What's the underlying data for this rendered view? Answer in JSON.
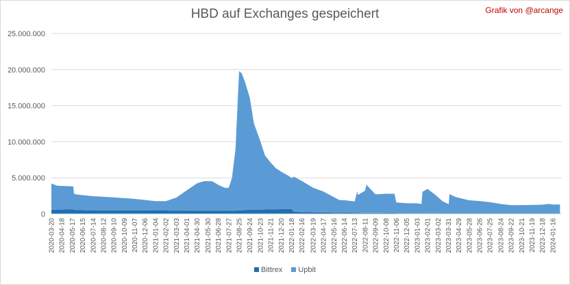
{
  "credit": "Grafik von @arcange",
  "colors": {
    "bittrex": "#1f6fb2",
    "upbit": "#5b9bd5",
    "grid": "#d9d9d9",
    "text": "#595959",
    "credit": "#c00000"
  },
  "chart_data": {
    "type": "area",
    "stacked": true,
    "title": "HBD auf Exchanges gespeichert",
    "xlabel": "",
    "ylabel": "",
    "ylim": [
      0,
      25000000
    ],
    "ytick_labels": [
      "0",
      "5.000.000",
      "10.000.000",
      "15.000.000",
      "20.000.000",
      "25.000.000"
    ],
    "ytick_values": [
      0,
      5000000,
      10000000,
      15000000,
      20000000,
      25000000
    ],
    "x_tick_labels": [
      "2020-03-20",
      "2020-04-18",
      "2020-05-17",
      "2020-06-15",
      "2020-07-14",
      "2020-08-12",
      "2020-09-10",
      "2020-10-09",
      "2020-11-07",
      "2020-12-06",
      "2021-01-04",
      "2021-02-02",
      "2021-03-03",
      "2021-04-01",
      "2021-04-30",
      "2021-05-30",
      "2021-06-28",
      "2021-07-27",
      "2021-08-25",
      "2021-09-24",
      "2021-10-23",
      "2021-11-21",
      "2021-12-20",
      "2022-01-18",
      "2022-02-16",
      "2022-03-19",
      "2022-04-17",
      "2022-05-16",
      "2022-06-14",
      "2022-07-13",
      "2022-08-11",
      "2022-09-09",
      "2022-10-08",
      "2022-11-06",
      "2022-12-05",
      "2023-01-03",
      "2023-02-01",
      "2023-03-02",
      "2023-03-31",
      "2023-04-29",
      "2023-05-28",
      "2023-06-26",
      "2023-07-25",
      "2023-08-24",
      "2023-09-22",
      "2023-10-21",
      "2023-11-19",
      "2023-12-18",
      "2024-01-16"
    ],
    "grid": true,
    "legend_position": "bottom",
    "series": [
      {
        "name": "Bittrex",
        "x": [
          "2020-03-20",
          "2020-04-01",
          "2020-05-17",
          "2020-06-01",
          "2020-08-12",
          "2020-10-09",
          "2020-12-06",
          "2021-02-02",
          "2021-04-01",
          "2021-05-30",
          "2021-07-27",
          "2021-08-25",
          "2021-09-10",
          "2021-10-23",
          "2021-11-21",
          "2021-12-05",
          "2022-01-18",
          "2022-01-25",
          "2022-02-16",
          "2022-04-17",
          "2022-06-14",
          "2022-08-11",
          "2022-10-08",
          "2022-12-05",
          "2023-02-01",
          "2023-03-31",
          "2023-05-28",
          "2023-07-25",
          "2023-09-22",
          "2023-11-19",
          "2024-01-16",
          "2024-02-05"
        ],
        "values": [
          550000,
          600000,
          620000,
          520000,
          500000,
          490000,
          480000,
          470000,
          460000,
          440000,
          430000,
          480000,
          550000,
          600000,
          620000,
          650000,
          680000,
          300000,
          260000,
          200000,
          150000,
          120000,
          100000,
          80000,
          60000,
          50000,
          40000,
          30000,
          20000,
          15000,
          10000,
          10000
        ]
      },
      {
        "name": "Upbit",
        "x": [
          "2020-03-20",
          "2020-04-05",
          "2020-05-20",
          "2020-05-22",
          "2020-07-14",
          "2020-09-10",
          "2020-11-07",
          "2021-01-04",
          "2021-02-02",
          "2021-03-03",
          "2021-04-01",
          "2021-04-30",
          "2021-05-20",
          "2021-06-10",
          "2021-06-28",
          "2021-07-15",
          "2021-07-27",
          "2021-08-05",
          "2021-08-15",
          "2021-08-20",
          "2021-08-25",
          "2021-09-01",
          "2021-09-10",
          "2021-09-24",
          "2021-10-05",
          "2021-10-23",
          "2021-11-05",
          "2021-11-21",
          "2021-12-05",
          "2021-12-20",
          "2022-01-10",
          "2022-01-18",
          "2022-01-25",
          "2022-02-16",
          "2022-03-19",
          "2022-04-17",
          "2022-05-16",
          "2022-06-01",
          "2022-06-14",
          "2022-07-13",
          "2022-07-20",
          "2022-07-22",
          "2022-08-11",
          "2022-08-15",
          "2022-08-17",
          "2022-09-09",
          "2022-10-08",
          "2022-11-01",
          "2022-11-06",
          "2022-12-05",
          "2023-01-03",
          "2023-01-15",
          "2023-01-18",
          "2023-02-01",
          "2023-02-20",
          "2023-03-15",
          "2023-04-01",
          "2023-04-03",
          "2023-04-20",
          "2023-05-28",
          "2023-06-26",
          "2023-07-25",
          "2023-08-24",
          "2023-09-22",
          "2023-10-21",
          "2023-11-19",
          "2023-12-18",
          "2024-01-05",
          "2024-01-16",
          "2024-02-05"
        ],
        "values": [
          3650000,
          3300000,
          3200000,
          2200000,
          1950000,
          1800000,
          1600000,
          1300000,
          1300000,
          1800000,
          2800000,
          3800000,
          4100000,
          4100000,
          3600000,
          3200000,
          3200000,
          4500000,
          8500000,
          14000000,
          19300000,
          19000000,
          17800000,
          15500000,
          12000000,
          9500000,
          7500000,
          6500000,
          5700000,
          5200000,
          4600000,
          4300000,
          4850000,
          4300000,
          3400000,
          2900000,
          2150000,
          1750000,
          1750000,
          1600000,
          3000000,
          2500000,
          3100000,
          4000000,
          3800000,
          2600000,
          2700000,
          2700000,
          1500000,
          1400000,
          1400000,
          1300000,
          3000000,
          3400000,
          2700000,
          1700000,
          1300000,
          2700000,
          2300000,
          1850000,
          1750000,
          1600000,
          1350000,
          1200000,
          1200000,
          1230000,
          1270000,
          1370000,
          1300000,
          1300000
        ]
      }
    ]
  }
}
